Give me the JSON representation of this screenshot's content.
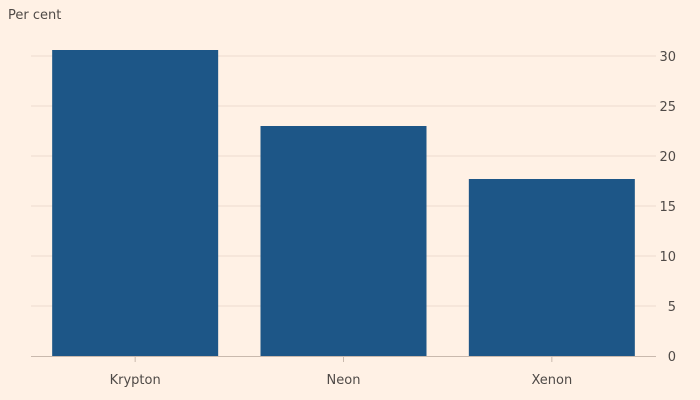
{
  "chart_data": {
    "type": "bar",
    "ylabel": "Per cent",
    "categories": [
      "Krypton",
      "Neon",
      "Xenon"
    ],
    "values": [
      30.6,
      23.0,
      17.7
    ],
    "ylim": [
      0,
      32
    ],
    "yticks": [
      0,
      5,
      10,
      15,
      20,
      25,
      30
    ],
    "y_axis_side": "right",
    "grid": true,
    "colors": {
      "bar": "#1d5687",
      "grid": "#ecdcd0",
      "axis": "#c9b9ad",
      "background": "#fff1e5"
    }
  }
}
